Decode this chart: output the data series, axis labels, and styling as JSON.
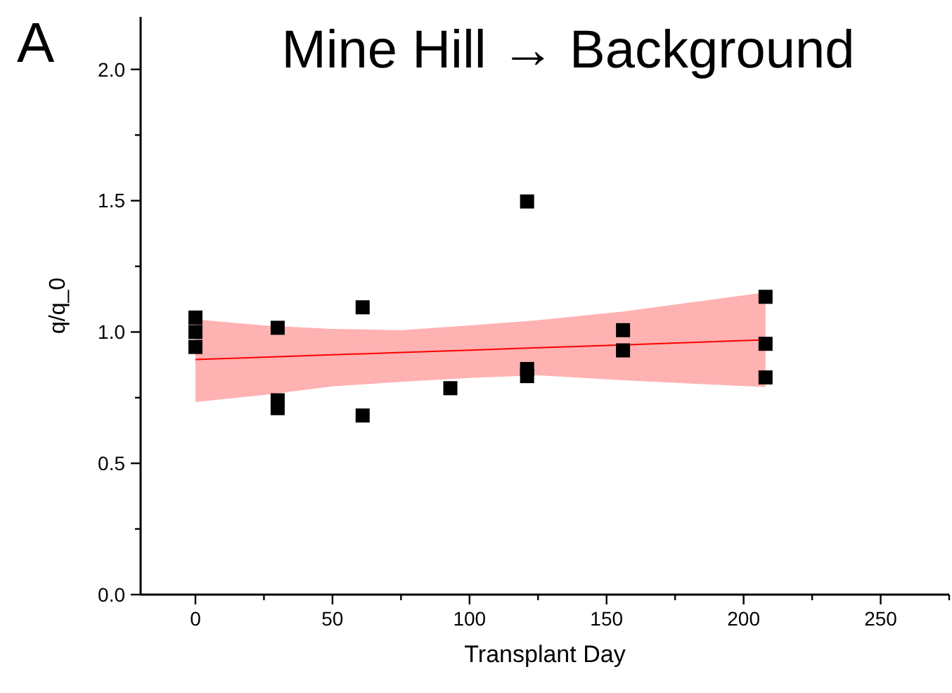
{
  "chart_data": {
    "type": "scatter",
    "title": "Mine Hill → Background",
    "xlabel": "Transplant Day",
    "ylabel": "q/q_0",
    "annotations": [
      "A"
    ],
    "xlim": [
      -20,
      275
    ],
    "ylim": [
      0,
      2.2
    ],
    "xticks": [
      0,
      {
        "value": 25,
        "label": null
      },
      50,
      {
        "value": 75,
        "label": null
      },
      100,
      {
        "value": 125,
        "label": null
      },
      150,
      {
        "value": 175,
        "label": null
      },
      200,
      {
        "value": 225,
        "label": null
      },
      250,
      {
        "value": 275,
        "label": null
      }
    ],
    "yticks": [
      {
        "value": 0,
        "label": "0.0"
      },
      {
        "value": 0.25,
        "label": null
      },
      {
        "value": 0.5,
        "label": "0.5"
      },
      {
        "value": 0.75,
        "label": null
      },
      {
        "value": 1,
        "label": "1.0"
      },
      {
        "value": 1.25,
        "label": null
      },
      {
        "value": 1.5,
        "label": "1.5"
      },
      {
        "value": 1.75,
        "label": null
      },
      {
        "value": 2,
        "label": "2.0"
      }
    ],
    "grid": false,
    "series": [
      {
        "type": "line",
        "color": "#ff0000",
        "x": [
          0,
          25,
          50,
          75,
          100,
          125,
          156,
          208
        ],
        "values": [
          0.895,
          0.904,
          0.913,
          0.922,
          0.931,
          0.94,
          0.951,
          0.97
        ],
        "lower": [
          0.733,
          0.76,
          0.793,
          0.81,
          0.825,
          0.835,
          0.816,
          0.79
        ],
        "upper": [
          1.048,
          1.025,
          1.012,
          1.007,
          1.025,
          1.045,
          1.078,
          1.151
        ],
        "marker": "none",
        "line_style": "solid"
      },
      {
        "color": "#000000",
        "marker": "square",
        "x": [
          0,
          0,
          0,
          30,
          30,
          30,
          61,
          61,
          93,
          121,
          121,
          121,
          156,
          156,
          208,
          208,
          208
        ],
        "values": [
          1.055,
          1.0,
          0.943,
          1.016,
          0.74,
          0.71,
          1.094,
          0.682,
          0.786,
          1.497,
          0.859,
          0.832,
          1.007,
          0.93,
          1.134,
          0.955,
          0.827
        ]
      }
    ]
  }
}
